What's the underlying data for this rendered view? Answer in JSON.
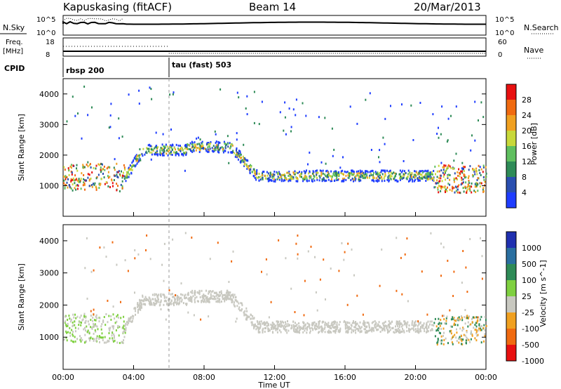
{
  "header": {
    "station": "Kapuskasing (fitACF)",
    "beam": "Beam 14",
    "date": "20/Mar/2013"
  },
  "panels": {
    "nsky": {
      "label": "N.Sky",
      "left_ticks": [
        "10^5",
        "10^0"
      ],
      "right_ticks": [
        "10^5",
        "10^0"
      ],
      "right_label": "N.Search",
      "right_legend_style": "dotted"
    },
    "freq": {
      "label_line1": "Freq.",
      "label_line2": "[MHz]",
      "left_ticks": [
        "18",
        "8"
      ],
      "right_ticks": [
        "60",
        "0"
      ],
      "right_label": "Nave",
      "right_legend_style": "dotted"
    },
    "cpid": {
      "label": "CPID",
      "modes": [
        {
          "name": "rbsp 200",
          "start_hour": 0.0
        },
        {
          "name": "tau (fast) 503",
          "start_hour": 6.0
        }
      ]
    }
  },
  "chart_data": [
    {
      "type": "heatmap",
      "name": "power",
      "xlabel": "",
      "ylabel": "Slant Range [km]",
      "ylim": [
        0,
        4500
      ],
      "yticks": [
        1000,
        2000,
        3000,
        4000
      ],
      "colorbar": {
        "label": "Power [dB]",
        "ticks": [
          "4",
          "8",
          "12",
          "16",
          "20",
          "24",
          "28"
        ],
        "colors": [
          "#1f3dff",
          "#2a4fb0",
          "#2e8b57",
          "#5fbf5f",
          "#c8d83a",
          "#f0a020",
          "#f06a10",
          "#e81010"
        ]
      },
      "scatter_region": {
        "description_segments": [
          {
            "x": [
              0.0,
              3.5
            ],
            "y_center": 1300
          },
          {
            "x": [
              3.5,
              10.5
            ],
            "y_center": 2250
          },
          {
            "x": [
              10.5,
              21.0
            ],
            "y_center": 1300
          },
          {
            "x": [
              21.0,
              24.0
            ],
            "y_center": 1200
          }
        ]
      }
    },
    {
      "type": "heatmap",
      "name": "velocity",
      "xlabel": "Time UT",
      "ylabel": "Slant Range [km]",
      "ylim": [
        0,
        4500
      ],
      "yticks": [
        1000,
        2000,
        3000,
        4000
      ],
      "xticks": [
        "00:00",
        "04:00",
        "08:00",
        "12:00",
        "16:00",
        "20:00",
        "00:00"
      ],
      "xlim_hours": [
        0,
        24
      ],
      "colorbar": {
        "label": "Velocity [m s^-1]",
        "ticks": [
          "1000",
          "500",
          "100",
          "25",
          "-25",
          "-100",
          "-500",
          "-1000"
        ],
        "colors": [
          "#2030b0",
          "#2a6fa0",
          "#2e8b57",
          "#7fd040",
          "#c8c8c0",
          "#f0a020",
          "#f06a10",
          "#e81010"
        ]
      }
    }
  ]
}
